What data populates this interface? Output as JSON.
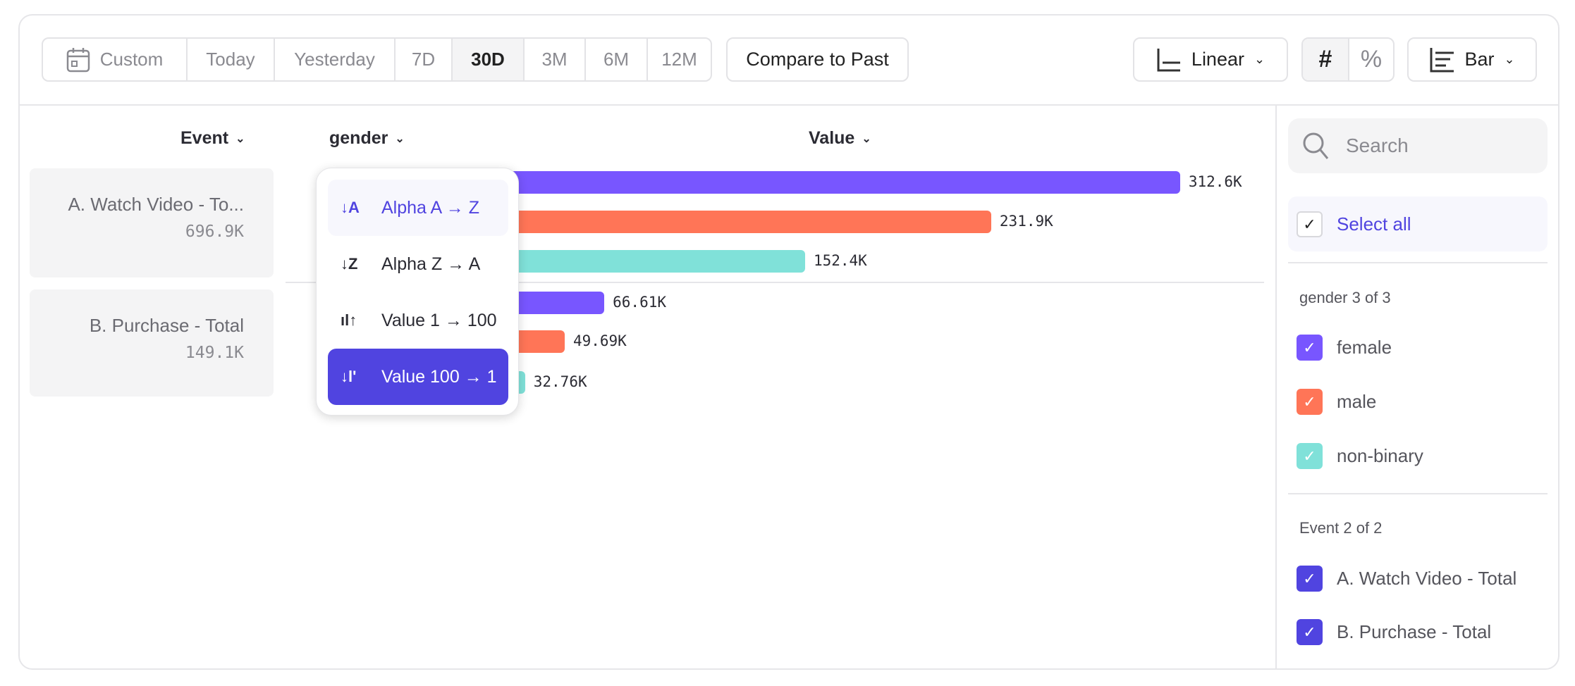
{
  "toolbar": {
    "date_ranges": [
      "Custom",
      "Today",
      "Yesterday",
      "7D",
      "30D",
      "3M",
      "6M",
      "12M"
    ],
    "active_range": "30D",
    "compare_label": "Compare to Past",
    "scale_label": "Linear",
    "number_icon": "#",
    "percent_icon": "%",
    "chart_type_label": "Bar"
  },
  "columns": {
    "event": "Event",
    "gender": "gender",
    "value": "Value"
  },
  "events": [
    {
      "name": "A. Watch Video - To...",
      "total": "696.9K"
    },
    {
      "name": "B. Purchase - Total",
      "total": "149.1K"
    }
  ],
  "sort_menu": {
    "items": [
      "Alpha A → Z",
      "Alpha Z → A",
      "Value 1 → 100",
      "Value 100 → 1"
    ],
    "hovered": "Alpha A → Z",
    "selected": "Value 100 → 1"
  },
  "sidebar": {
    "search_placeholder": "Search",
    "select_all": "Select all",
    "gender_heading": "gender 3 of 3",
    "genders": [
      {
        "label": "female",
        "color": "#7856ff"
      },
      {
        "label": "male",
        "color": "#ff7557"
      },
      {
        "label": "non-binary",
        "color": "#80e1d9"
      }
    ],
    "event_heading": "Event 2 of 2",
    "events": [
      "A. Watch Video - Total",
      "B. Purchase - Total"
    ],
    "event_color": "#5044e0"
  },
  "chart_data": {
    "type": "bar",
    "orientation": "horizontal",
    "groups": [
      {
        "event": "A. Watch Video - Total",
        "bars": [
          {
            "gender": "female",
            "value": 312.6,
            "label": "312.6K",
            "color": "#7856ff"
          },
          {
            "gender": "male",
            "value": 231.9,
            "label": "231.9K",
            "color": "#ff7557"
          },
          {
            "gender": "non-binary",
            "value": 152.4,
            "label": "152.4K",
            "color": "#80e1d9"
          }
        ]
      },
      {
        "event": "B. Purchase - Total",
        "bars": [
          {
            "gender": "female",
            "value": 66.61,
            "label": "66.61K",
            "color": "#7856ff"
          },
          {
            "gender": "male",
            "value": 49.69,
            "label": "49.69K",
            "color": "#ff7557"
          },
          {
            "gender": "non-binary",
            "value": 32.76,
            "label": "32.76K",
            "color": "#80e1d9"
          }
        ]
      }
    ]
  }
}
